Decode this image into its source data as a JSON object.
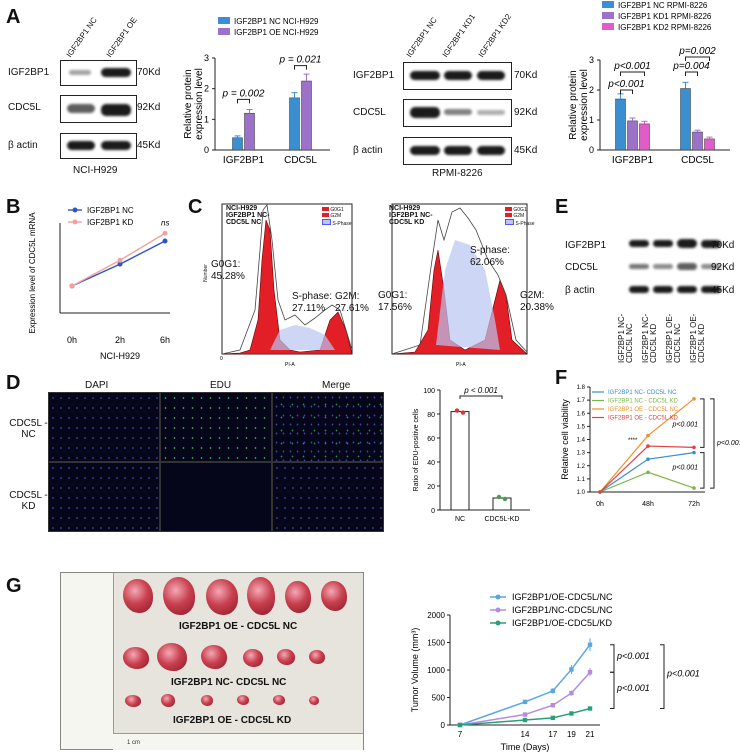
{
  "panels": {
    "A": "A",
    "B": "B",
    "C": "C",
    "D": "D",
    "E": "E",
    "F": "F",
    "G": "G"
  },
  "panelA": {
    "blot1": {
      "lanes": [
        "IGF2BP1 NC",
        "IGF2BP1 OE"
      ],
      "rows": [
        "IGF2BP1",
        "CDC5L",
        "β actin"
      ],
      "sizes": [
        "70Kd",
        "92Kd",
        "45Kd"
      ],
      "cell_line": "NCI-H929"
    },
    "blot2": {
      "lanes": [
        "IGF2BP1 NC",
        "IGF2BP1 KD1",
        "IGF2BP1 KD2"
      ],
      "rows": [
        "IGF2BP1",
        "CDC5L",
        "β actin"
      ],
      "sizes": [
        "70Kd",
        "92Kd",
        "45Kd"
      ],
      "cell_line": "RPMI-8226"
    }
  },
  "panelD": {
    "columns": [
      "DAPI",
      "EDU",
      "Merge"
    ],
    "rows": [
      "CDC5L -NC",
      "CDC5L -KD"
    ]
  },
  "panelE": {
    "lanes": [
      "IGF2BP1 NC-CDC5L NC",
      "IGF2BP1 NC-CDC5L KD",
      "IGF2BP1 OE-CDC5L NC",
      "IGF2BP1 OE-CDC5L KD"
    ],
    "rows": [
      "IGF2BP1",
      "CDC5L",
      "β actin"
    ],
    "sizes": [
      "70Kd",
      "92Kd",
      "45Kd"
    ]
  },
  "panelC": {
    "left": {
      "title": "NCI-H929 IGF2BP1 NC- CDC5L NC",
      "g0g1_label": "G0G1:",
      "g0g1": "45.28%",
      "s_label": "S-phase:",
      "s": "27.11%",
      "g2m_label": "G2M:",
      "g2m": "27.61%"
    },
    "right": {
      "title": "NCI-H929 IGF2BP1 NC- CDC5L KD",
      "g0g1_label": "G0G1:",
      "g0g1": "17.56%",
      "s_label": "S-phase:",
      "s": "62.06%",
      "g2m_label": "G2M:",
      "g2m": "20.38%"
    },
    "legend": [
      "G0G1",
      "G2M",
      "S-Phase"
    ],
    "xaxis": "PI-A",
    "yaxis": "Number"
  },
  "panelG_photo": {
    "rows": [
      "IGF2BP1 OE - CDC5L NC",
      "IGF2BP1 NC- CDC5L NC",
      "IGF2BP1 OE - CDC5L KD"
    ],
    "ruler_label": "1 cm"
  },
  "chart_data": [
    {
      "id": "A-bar1",
      "type": "bar",
      "categories": [
        "IGF2BP1",
        "CDC5L"
      ],
      "series": [
        {
          "name": "IGF2BP1 NC NCI-H929",
          "color": "#3b8fd1",
          "values": [
            0.4,
            1.7
          ]
        },
        {
          "name": "IGF2BP1 OE NCI-H929",
          "color": "#9b72c7",
          "values": [
            1.2,
            2.25
          ]
        }
      ],
      "ylabel": "Relative protein expression level",
      "ylim": [
        0,
        3
      ],
      "annotations": [
        "p = 0.002",
        "p = 0.021"
      ]
    },
    {
      "id": "A-bar2",
      "type": "bar",
      "categories": [
        "IGF2BP1",
        "CDC5L"
      ],
      "series": [
        {
          "name": "IGF2BP1 NC RPMI-8226",
          "color": "#3b8fd1",
          "values": [
            1.7,
            2.05
          ]
        },
        {
          "name": "IGF2BP1 KD1 RPMI-8226",
          "color": "#9b72c7",
          "values": [
            0.97,
            0.6
          ]
        },
        {
          "name": "IGF2BP1 KD2 RPMI-8226",
          "color": "#e05cc8",
          "values": [
            0.87,
            0.37
          ]
        }
      ],
      "ylabel": "Relative protein expression level",
      "ylim": [
        0,
        3
      ],
      "annotations": [
        "p<0.001",
        "p<0.001",
        "p=0.004",
        "p=0.002"
      ]
    },
    {
      "id": "B",
      "type": "line",
      "categories": [
        "0h",
        "2h",
        "6h"
      ],
      "series": [
        {
          "name": "IGF2BP1 NC",
          "color": "#2b55c9",
          "values": [
            2.1,
            3.8,
            5.6
          ]
        },
        {
          "name": "IGF2BP1 KD",
          "color": "#f4a0a0",
          "values": [
            2.1,
            4.1,
            6.2
          ]
        }
      ],
      "ylabel": "Expression level of CDC5L mRNA",
      "xlabel": "NCI-H929",
      "annotations": [
        "ns"
      ]
    },
    {
      "id": "D",
      "type": "bar",
      "categories": [
        "NC",
        "CDC5L-KD"
      ],
      "values": [
        82,
        10
      ],
      "ylabel": "Ratio of EDU-positive cells",
      "yticks": [
        "0",
        "20",
        "40",
        "60",
        "80",
        "100"
      ],
      "ylim": [
        0,
        100
      ],
      "annotations": [
        "p < 0.001"
      ]
    },
    {
      "id": "F",
      "type": "line",
      "categories": [
        "0h",
        "48h",
        "72h"
      ],
      "series": [
        {
          "name": "IGF2BP1 NC- CDC5L NC",
          "color": "#3b8fd1",
          "values": [
            1.0,
            1.25,
            1.3
          ]
        },
        {
          "name": "IGF2BP1 NC - CDC5L KD",
          "color": "#7ab648",
          "values": [
            1.0,
            1.15,
            1.03
          ]
        },
        {
          "name": "IGF2BP1 OE - CDC5L NC",
          "color": "#f0902a",
          "values": [
            1.0,
            1.43,
            1.71
          ]
        },
        {
          "name": "IGF2BP1 OE - CDC5L KD",
          "color": "#e04040",
          "values": [
            1.0,
            1.35,
            1.34
          ]
        }
      ],
      "ylabel": "Relative cell viability",
      "yticks": [
        "1.0",
        "1.1",
        "1.2",
        "1.3",
        "1.4",
        "1.5",
        "1.6",
        "1.7",
        "1.8"
      ],
      "ylim": [
        1.0,
        1.8
      ],
      "annotations": [
        "****",
        "p<0.001",
        "p<0.001",
        "p<0.001"
      ]
    },
    {
      "id": "G",
      "type": "line",
      "categories": [
        "7",
        "14",
        "17",
        "19",
        "21"
      ],
      "series": [
        {
          "name": "IGF2BP1/OE-CDC5L/NC",
          "color": "#5aa7e0",
          "values": [
            0,
            420,
            620,
            1010,
            1460
          ]
        },
        {
          "name": "IGF2BP1/NC-CDC5L/NC",
          "color": "#b48be0",
          "values": [
            0,
            190,
            360,
            580,
            960
          ]
        },
        {
          "name": "IGF2BP1/OE-CDC5L/KD",
          "color": "#2aa07a",
          "values": [
            0,
            90,
            130,
            210,
            300
          ]
        }
      ],
      "xlabel": "Time (Days)",
      "ylabel": "Tumor Volume (mm³)",
      "yticks": [
        "0",
        "500",
        "1000",
        "1500",
        "2000"
      ],
      "ylim": [
        0,
        2000
      ],
      "annotations": [
        "p<0.001",
        "p<0.001",
        "p<0.001"
      ]
    }
  ]
}
